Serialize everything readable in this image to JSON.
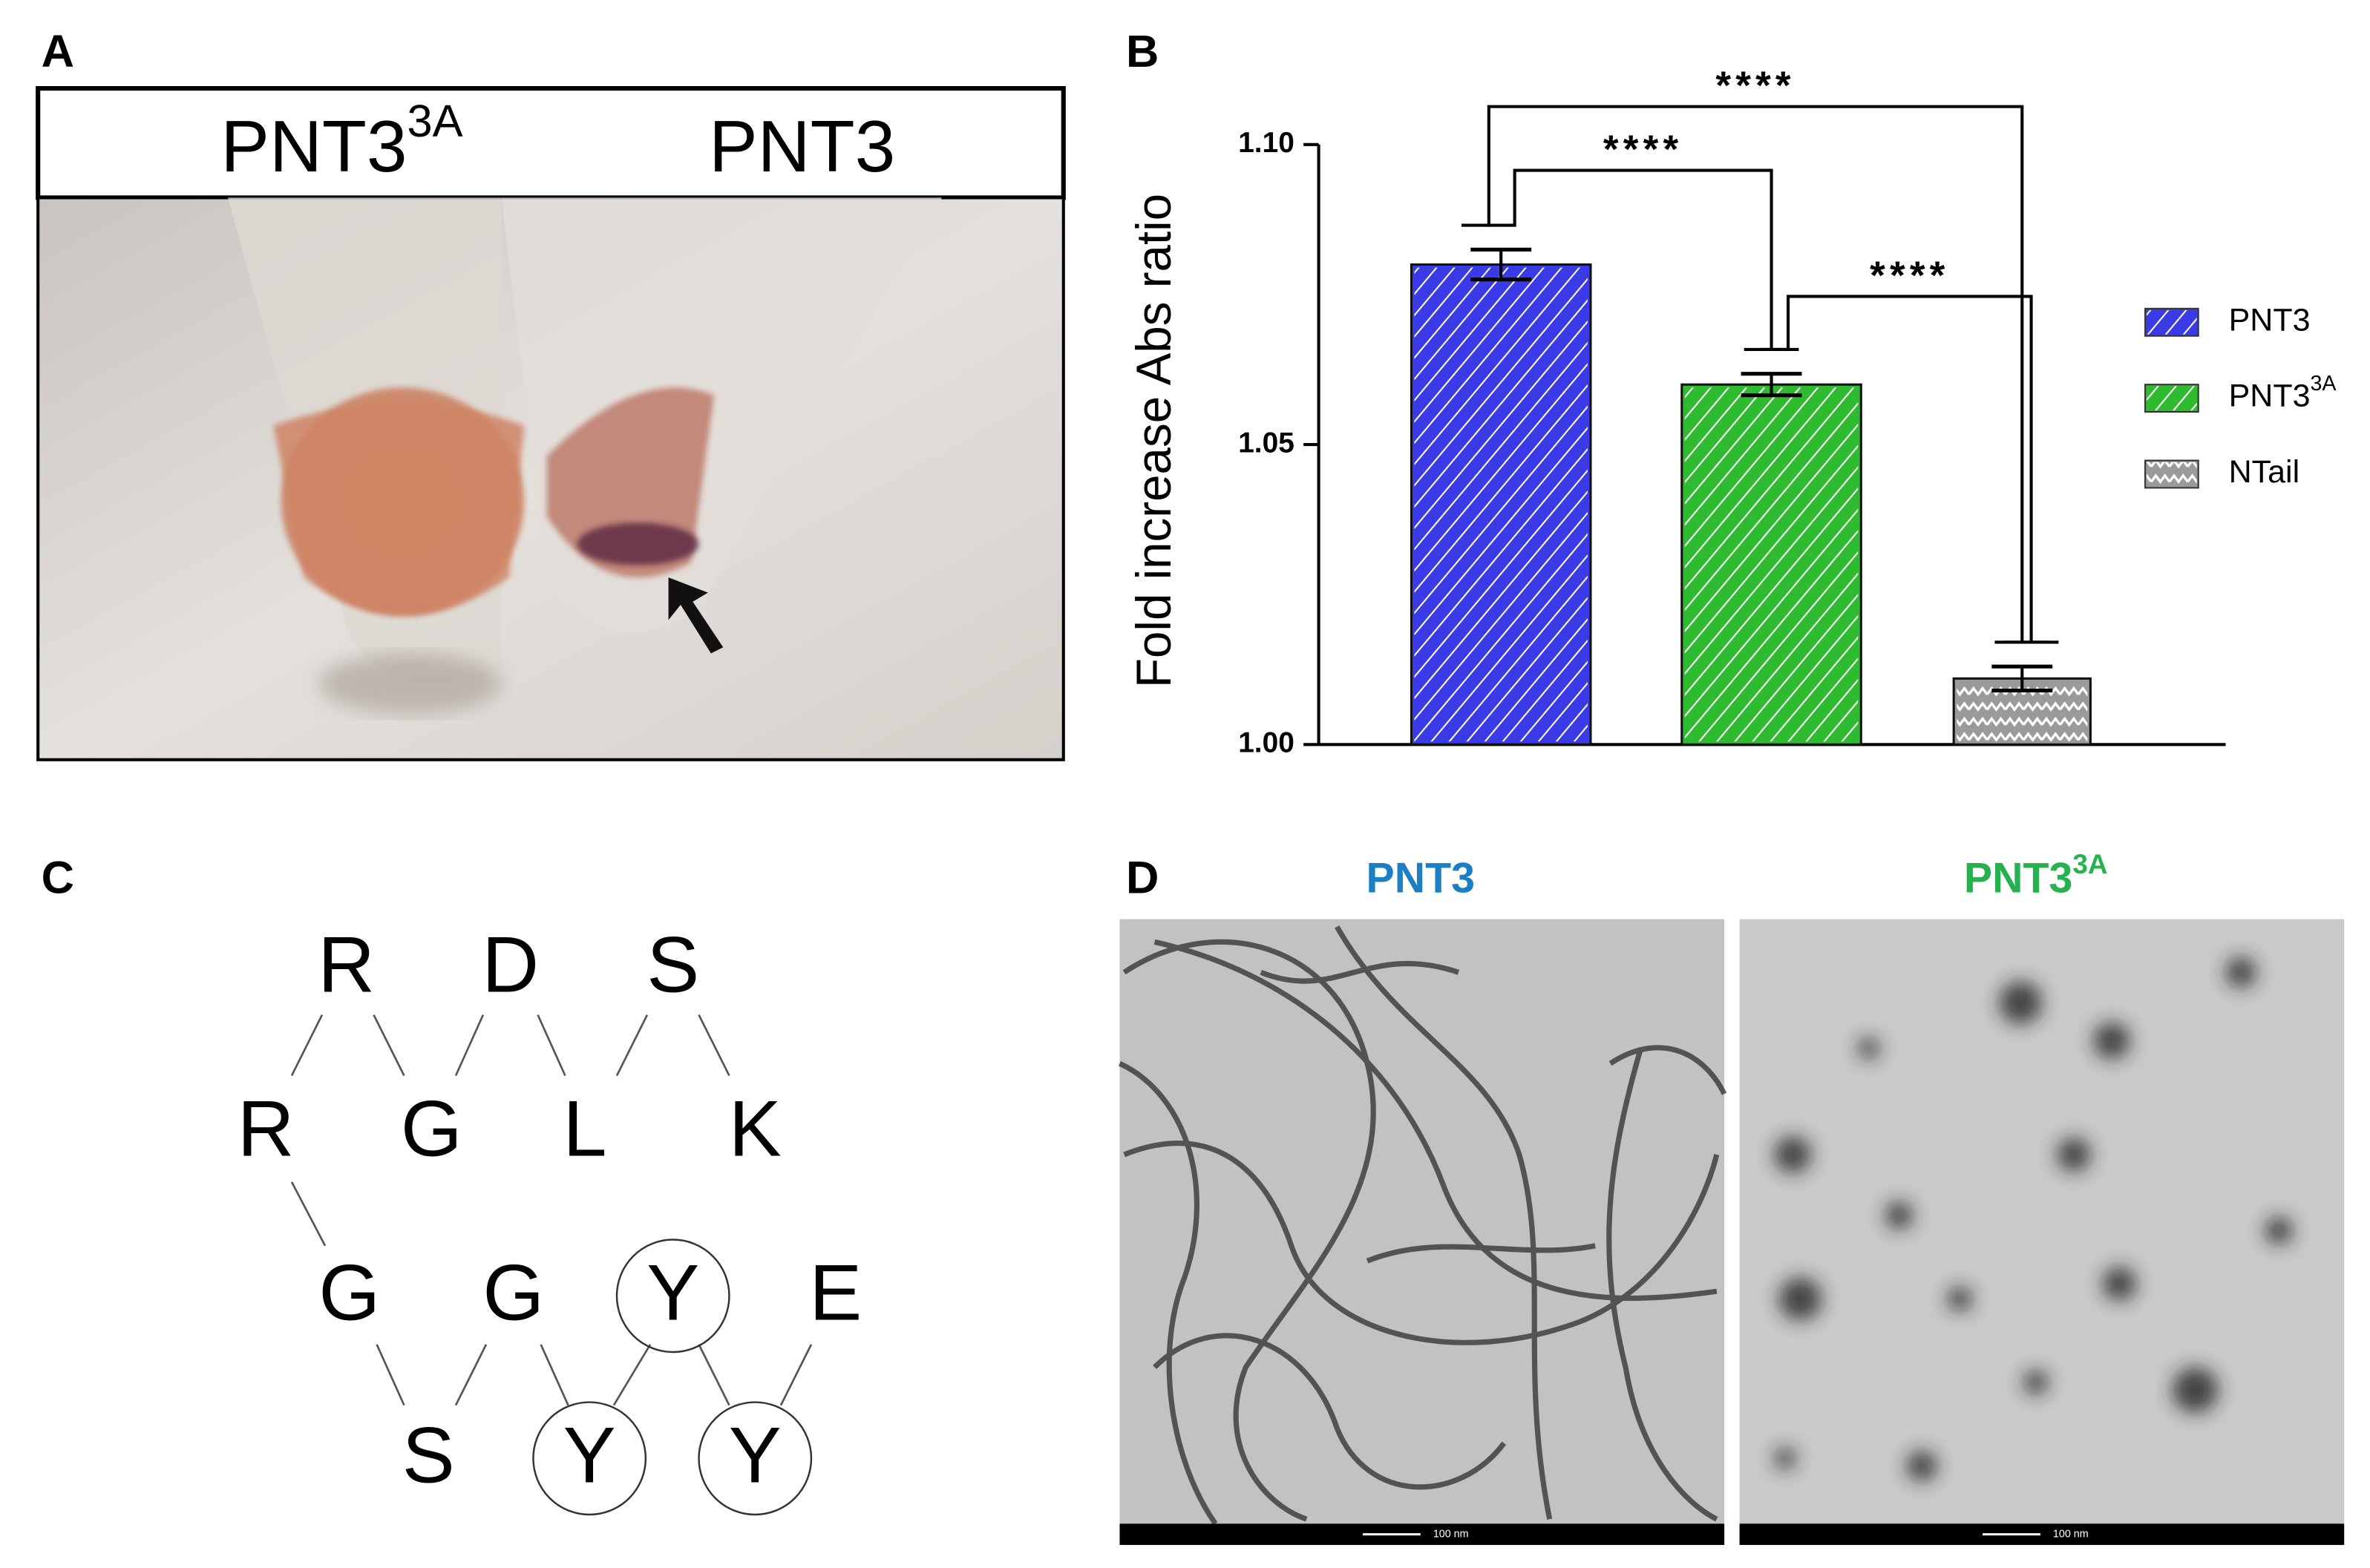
{
  "panel_a": {
    "label": "A",
    "tubes": [
      {
        "name": "PNT3",
        "superscript": "3A"
      },
      {
        "name": "PNT3"
      }
    ]
  },
  "chart_data": {
    "panel_label": "B",
    "type": "bar",
    "y_label": "Fold increase Abs ratio",
    "series": [
      {
        "name": "PNT3",
        "color": "#3a3ae6",
        "values": [
          1.08
        ],
        "errors": [
          0.0025
        ]
      },
      {
        "name": "PNT3",
        "superscript": "3A",
        "color": "#2fbb2f",
        "values": [
          1.06
        ],
        "errors": [
          0.0018
        ]
      },
      {
        "name": "NTail",
        "color": "#9a9a9a",
        "values": [
          1.011
        ],
        "errors": [
          0.002
        ]
      }
    ],
    "comparisons": [
      {
        "series": [
          0,
          2
        ],
        "label": "****"
      },
      {
        "series": [
          0,
          1
        ],
        "label": "****"
      },
      {
        "series": [
          1,
          2
        ],
        "label": "****"
      }
    ],
    "ylim": [
      1.0,
      1.1
    ],
    "yticks": [
      {
        "value": 1.0,
        "label": "1.00"
      },
      1.05,
      {
        "value": 1.1,
        "label": "1.10"
      }
    ],
    "legend": "right"
  },
  "panel_c": {
    "label": "C",
    "residues": [
      {
        "label": "R",
        "circled": false
      },
      {
        "label": "D",
        "circled": false
      },
      {
        "label": "S",
        "circled": false
      },
      {
        "label": "R",
        "circled": false
      },
      {
        "label": "G",
        "circled": false
      },
      {
        "label": "L",
        "circled": false
      },
      {
        "label": "K",
        "circled": false
      },
      {
        "label": "G",
        "circled": false
      },
      {
        "label": "G",
        "circled": false
      },
      {
        "label": "Y",
        "circled": true
      },
      {
        "label": "E",
        "circled": false
      },
      {
        "label": "S",
        "circled": false
      },
      {
        "label": "Y",
        "circled": true
      },
      {
        "label": "Y",
        "circled": true
      }
    ]
  },
  "panel_d": {
    "label": "D",
    "images": [
      {
        "title": "PNT3",
        "color": "#1b7fc6",
        "scale_bar": "100 nm"
      },
      {
        "title": "PNT3",
        "superscript": "3A",
        "color": "#25b14f",
        "scale_bar": "100 nm"
      }
    ]
  }
}
